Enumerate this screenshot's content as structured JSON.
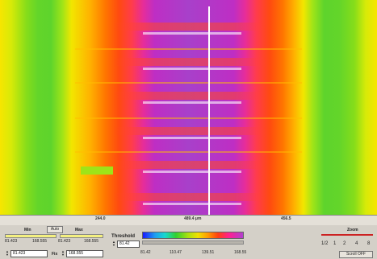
{
  "ruler": {
    "ticks": [
      "244.0",
      "489.4 μm",
      "456.5"
    ]
  },
  "controls": {
    "min_label": "Min",
    "auto_label": "Auto",
    "max_label": "Max",
    "row1_min_value": "81.423",
    "row1_max_value": "168.555",
    "row1b_min_value": "81.423",
    "row1b_max_value": "168.555",
    "min_field_value": "81.423",
    "fix_label": "Fix",
    "max_field_value": "168.555",
    "threshold_label": "Threshold",
    "threshold_value": "81.42",
    "scale_ticks": [
      "81.42",
      "110.47",
      "139.51",
      "168.55"
    ]
  },
  "zoom": {
    "label": "Zoom",
    "levels": [
      "1/2",
      "1",
      "2",
      "4",
      "8"
    ],
    "scroll_button": "Scroll OFF"
  },
  "colors": {
    "cursor": "#ffffff",
    "zoom_indicator": "#cc2222"
  }
}
